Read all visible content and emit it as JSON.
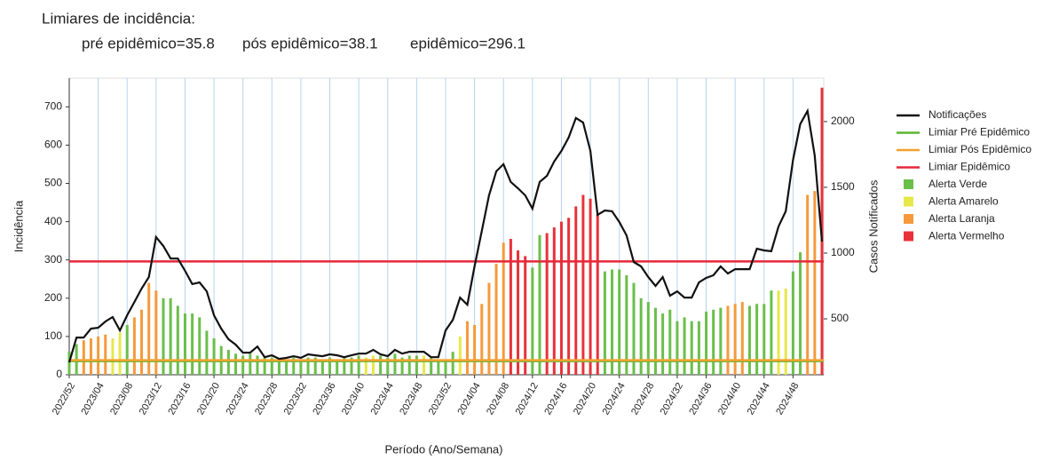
{
  "chart_data": {
    "type": "bar",
    "title": "Limiares de incidência:",
    "annotations": [
      "pré epidêmico=35.8",
      "pós epidêmico=38.1",
      "epidêmico=296.1"
    ],
    "xlabel": "Período (Ano/Semana)",
    "ylabel": "Incidência",
    "y2label": "Casos Notificados",
    "categories": [
      "2022/52",
      null,
      null,
      null,
      "2023/04",
      null,
      null,
      null,
      "2023/08",
      null,
      null,
      null,
      "2023/12",
      null,
      null,
      null,
      "2023/16",
      null,
      null,
      null,
      "2023/20",
      null,
      null,
      null,
      "2023/24",
      null,
      null,
      null,
      "2023/28",
      null,
      null,
      null,
      "2023/32",
      null,
      null,
      null,
      "2023/36",
      null,
      null,
      null,
      "2023/40",
      null,
      null,
      null,
      "2023/44",
      null,
      null,
      null,
      "2023/48",
      null,
      null,
      null,
      "2023/52",
      null,
      null,
      null,
      "2024/04",
      null,
      null,
      null,
      "2024/08",
      null,
      null,
      null,
      "2024/12",
      null,
      null,
      null,
      "2024/16",
      null,
      null,
      null,
      "2024/20",
      null,
      null,
      null,
      "2024/24",
      null,
      null,
      null,
      "2024/28",
      null,
      null,
      null,
      "2024/32",
      null,
      null,
      null,
      "2024/36",
      null,
      null,
      null,
      "2024/40",
      null,
      null,
      null,
      "2024/44",
      null,
      null,
      null,
      "2024/48",
      null,
      null,
      null,
      null
    ],
    "ylim": [
      0,
      775
    ],
    "yticks": [
      0,
      100,
      200,
      300,
      400,
      500,
      600,
      700
    ],
    "y2lim": [
      75,
      2330
    ],
    "y2ticks": [
      500,
      1000,
      1500,
      2000
    ],
    "grid": true,
    "legend": "right",
    "series": [
      {
        "name": "Notificações",
        "type": "line",
        "axis": "y2",
        "color": "#111111",
        "values": [
          169,
          358,
          358,
          426,
          432,
          480,
          514,
          412,
          527,
          628,
          730,
          818,
          1122,
          1054,
          959,
          959,
          865,
          764,
          777,
          709,
          527,
          426,
          345,
          304,
          243,
          243,
          290,
          209,
          223,
          196,
          203,
          216,
          203,
          230,
          223,
          216,
          230,
          223,
          209,
          223,
          236,
          236,
          264,
          230,
          216,
          264,
          236,
          250,
          250,
          250,
          209,
          209,
          412,
          493,
          662,
          608,
          899,
          1169,
          1439,
          1622,
          1676,
          1541,
          1493,
          1439,
          1338,
          1541,
          1588,
          1696,
          1777,
          1878,
          2027,
          1993,
          1777,
          1291,
          1324,
          1318,
          1236,
          1135,
          932,
          899,
          818,
          750,
          818,
          676,
          709,
          662,
          662,
          777,
          811,
          831,
          899,
          845,
          878,
          878,
          878,
          1034,
          1020,
          1014,
          1203,
          1318,
          1709,
          1980,
          2081,
          1743,
          1088
        ]
      },
      {
        "name": "Limiar Pré Epidêmico",
        "type": "threshold",
        "color": "#5cb531",
        "value": 35.8
      },
      {
        "name": "Limiar Pós Epidêmico",
        "type": "threshold",
        "color": "#f5a030",
        "value": 38.1
      },
      {
        "name": "Limiar Epidêmico",
        "type": "threshold",
        "color": "#e5283a",
        "value": 296.1
      },
      {
        "name": "Alerta Verde",
        "type": "bar",
        "color": "#6abf4b",
        "values": [
          60,
          80,
          null,
          null,
          null,
          null,
          null,
          null,
          130,
          null,
          null,
          null,
          null,
          200,
          200,
          180,
          160,
          160,
          150,
          115,
          95,
          75,
          65,
          55,
          50,
          55,
          50,
          45,
          45,
          40,
          40,
          45,
          40,
          45,
          45,
          40,
          45,
          40,
          45,
          45,
          50,
          null,
          null,
          50,
          45,
          55,
          45,
          50,
          50,
          null,
          45,
          40,
          40,
          60,
          null,
          null,
          null,
          null,
          null,
          null,
          null,
          null,
          null,
          null,
          280,
          365,
          null,
          null,
          null,
          null,
          null,
          null,
          null,
          null,
          270,
          275,
          275,
          260,
          240,
          200,
          190,
          175,
          160,
          170,
          140,
          150,
          140,
          140,
          165,
          170,
          175,
          null,
          null,
          null,
          180,
          185,
          185,
          220,
          null,
          null,
          270,
          320,
          null,
          null,
          null
        ]
      },
      {
        "name": "Alerta Amarelo",
        "type": "bar",
        "color": "#e6e84a",
        "values": [
          null,
          null,
          null,
          null,
          null,
          null,
          95,
          110,
          null,
          null,
          null,
          null,
          null,
          null,
          null,
          null,
          null,
          null,
          null,
          null,
          null,
          null,
          null,
          null,
          null,
          null,
          null,
          null,
          null,
          null,
          null,
          null,
          null,
          null,
          null,
          null,
          null,
          null,
          null,
          null,
          null,
          45,
          50,
          null,
          null,
          null,
          null,
          null,
          null,
          50,
          null,
          null,
          null,
          null,
          100,
          null,
          null,
          null,
          null,
          null,
          null,
          null,
          null,
          null,
          null,
          null,
          null,
          null,
          null,
          null,
          null,
          null,
          null,
          null,
          null,
          null,
          null,
          null,
          null,
          null,
          null,
          null,
          null,
          null,
          null,
          null,
          null,
          null,
          null,
          null,
          null,
          null,
          null,
          null,
          null,
          null,
          null,
          null,
          220,
          225,
          null,
          null,
          null,
          null,
          null
        ]
      },
      {
        "name": "Alerta Laranja",
        "type": "bar",
        "color": "#f59a3c",
        "values": [
          null,
          null,
          90,
          95,
          100,
          105,
          null,
          null,
          null,
          150,
          170,
          240,
          220,
          null,
          null,
          null,
          null,
          null,
          null,
          null,
          null,
          null,
          null,
          null,
          null,
          null,
          null,
          null,
          null,
          null,
          null,
          null,
          null,
          null,
          null,
          null,
          null,
          null,
          null,
          null,
          null,
          null,
          null,
          null,
          null,
          null,
          null,
          null,
          null,
          null,
          null,
          null,
          null,
          null,
          null,
          140,
          130,
          185,
          240,
          290,
          345,
          null,
          null,
          null,
          null,
          null,
          null,
          null,
          null,
          null,
          null,
          null,
          null,
          null,
          null,
          null,
          null,
          null,
          null,
          null,
          null,
          null,
          null,
          null,
          null,
          null,
          null,
          null,
          null,
          null,
          null,
          180,
          185,
          190,
          null,
          null,
          null,
          null,
          null,
          null,
          null,
          null,
          470,
          480,
          null
        ]
      },
      {
        "name": "Alerta Vermelho",
        "type": "bar",
        "color": "#e8323a",
        "values": [
          null,
          null,
          null,
          null,
          null,
          null,
          null,
          null,
          null,
          null,
          null,
          null,
          null,
          null,
          null,
          null,
          null,
          null,
          null,
          null,
          null,
          null,
          null,
          null,
          null,
          null,
          null,
          null,
          null,
          null,
          null,
          null,
          null,
          null,
          null,
          null,
          null,
          null,
          null,
          null,
          null,
          null,
          null,
          null,
          null,
          null,
          null,
          null,
          null,
          null,
          null,
          null,
          null,
          null,
          null,
          null,
          null,
          null,
          null,
          null,
          null,
          355,
          325,
          310,
          null,
          null,
          370,
          385,
          400,
          410,
          440,
          470,
          460,
          420,
          null,
          null,
          null,
          null,
          null,
          null,
          null,
          null,
          null,
          null,
          null,
          null,
          null,
          null,
          null,
          null,
          null,
          null,
          null,
          null,
          null,
          null,
          null,
          null,
          null,
          null,
          null,
          null,
          null,
          null,
          750
        ]
      }
    ]
  }
}
